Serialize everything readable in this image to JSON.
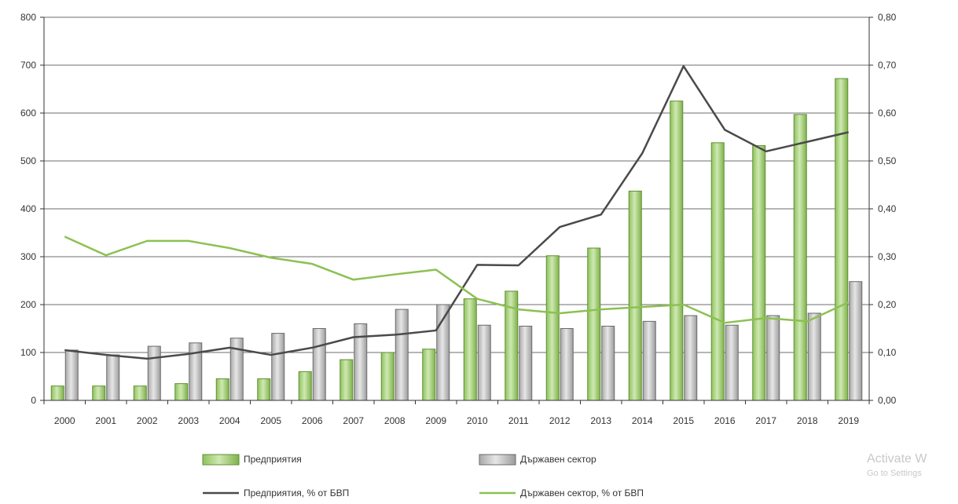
{
  "chart_data": {
    "type": "bar",
    "categories": [
      "2000",
      "2001",
      "2002",
      "2003",
      "2004",
      "2005",
      "2006",
      "2007",
      "2008",
      "2009",
      "2010",
      "2011",
      "2012",
      "2013",
      "2014",
      "2015",
      "2016",
      "2017",
      "2018",
      "2019"
    ],
    "ylim": [
      0,
      800
    ],
    "y_ticks": [
      "0",
      "100",
      "200",
      "300",
      "400",
      "500",
      "600",
      "700",
      "800"
    ],
    "y2lim": [
      0,
      0.8
    ],
    "y2_ticks": [
      "0,00",
      "0,10",
      "0,20",
      "0,30",
      "0,40",
      "0,50",
      "0,60",
      "0,70",
      "0,80"
    ],
    "grid": true,
    "legend_position": "bottom",
    "series": [
      {
        "name": "Предприятия",
        "kind": "bar",
        "axis": "left",
        "color": "#9fcf6a",
        "values": [
          30,
          30,
          30,
          35,
          45,
          45,
          60,
          85,
          100,
          107,
          212,
          228,
          302,
          318,
          437,
          625,
          538,
          532,
          597,
          672
        ]
      },
      {
        "name": "Държавен сектор",
        "kind": "bar",
        "axis": "left",
        "color": "#c4c4c4",
        "values": [
          105,
          95,
          113,
          120,
          130,
          140,
          150,
          160,
          190,
          200,
          157,
          155,
          150,
          155,
          165,
          177,
          157,
          177,
          182,
          248
        ]
      },
      {
        "name": "Предприятия, % от БВП",
        "kind": "line",
        "axis": "right",
        "color": "#4a4a4a",
        "values": [
          0.105,
          0.095,
          0.087,
          0.097,
          0.11,
          0.095,
          0.11,
          0.132,
          0.137,
          0.146,
          0.283,
          0.282,
          0.362,
          0.388,
          0.516,
          0.698,
          0.565,
          0.52,
          0.54,
          0.56
        ]
      },
      {
        "name": "Държавен сектор, % от БВП",
        "kind": "line",
        "axis": "right",
        "color": "#8cc152",
        "values": [
          0.342,
          0.303,
          0.333,
          0.333,
          0.318,
          0.298,
          0.285,
          0.252,
          0.263,
          0.273,
          0.212,
          0.19,
          0.182,
          0.19,
          0.195,
          0.2,
          0.162,
          0.172,
          0.165,
          0.205
        ]
      }
    ]
  },
  "watermark": {
    "line1": "Activate W",
    "line2": "Go to Settings"
  }
}
